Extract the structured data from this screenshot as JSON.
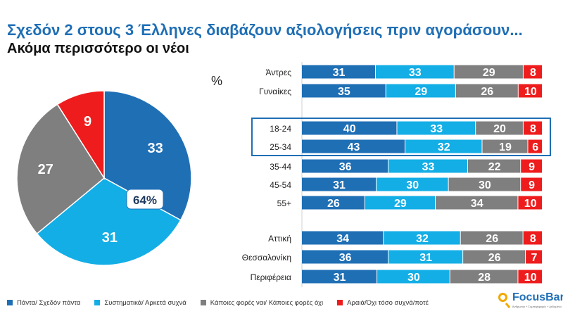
{
  "title": "Σχεδόν 2 στους 3 Έλληνες διαβάζουν αξιολογήσεις πριν αγοράσουν...",
  "subtitle": "Ακόμα περισσότερο οι νέοι",
  "unit_label": "%",
  "colors": {
    "pantα": "#1f6fb5",
    "systematika": "#13aee6",
    "kapoies": "#7f7f7f",
    "araia": "#ee1c1c"
  },
  "legend": [
    {
      "label": "Πάντα/ Σχεδόν πάντα",
      "color": "#1f6fb5"
    },
    {
      "label": "Συστηματικά/ Αρκετά συχνά",
      "color": "#13aee6"
    },
    {
      "label": "Κάποιες φορές ναι/ Κάποιες φορές όχι",
      "color": "#7f7f7f"
    },
    {
      "label": "Αραιά/Όχι τόσο συχνά/ποτέ",
      "color": "#ee1c1c"
    }
  ],
  "logo": {
    "name": "FocusBari",
    "tagline": "Άνθρωποι + Συμπεριφορές + Δεδομένα"
  },
  "chart_data": [
    {
      "type": "pie",
      "slices": [
        {
          "label": "Πάντα/ Σχεδόν πάντα",
          "value": 33,
          "color": "#1f6fb5"
        },
        {
          "label": "Συστηματικά/ Αρκετά συχνά",
          "value": 31,
          "color": "#13aee6"
        },
        {
          "label": "Κάποιες φορές ναι/ Κάποιες φορές όχι",
          "value": 27,
          "color": "#7f7f7f"
        },
        {
          "label": "Αραιά/Όχι τόσο συχνά/ποτέ",
          "value": 9,
          "color": "#ee1c1c"
        }
      ],
      "callout": "64%"
    },
    {
      "type": "bar",
      "stacked": true,
      "orientation": "horizontal",
      "groups": [
        {
          "rows": [
            "Άντρες",
            "Γυναίκες"
          ]
        },
        {
          "rows": [
            "18-24",
            "25-34",
            "35-44",
            "45-54",
            "55+"
          ],
          "highlighted": [
            "18-24",
            "25-34"
          ]
        },
        {
          "rows": [
            "Αττική",
            "Θεσσαλονίκη",
            "Περιφέρεια"
          ]
        }
      ],
      "categories": [
        "Άντρες",
        "Γυναίκες",
        "18-24",
        "25-34",
        "35-44",
        "45-54",
        "55+",
        "Αττική",
        "Θεσσαλονίκη",
        "Περιφέρεια"
      ],
      "series": [
        {
          "name": "Πάντα/ Σχεδόν πάντα",
          "values": [
            31,
            35,
            40,
            43,
            36,
            31,
            26,
            34,
            36,
            31
          ]
        },
        {
          "name": "Συστηματικά/ Αρκετά συχνά",
          "values": [
            33,
            29,
            33,
            32,
            33,
            30,
            29,
            32,
            31,
            30
          ]
        },
        {
          "name": "Κάποιες φορές ναι/ Κάποιες φορές όχι",
          "values": [
            29,
            26,
            20,
            19,
            22,
            30,
            34,
            26,
            26,
            28
          ]
        },
        {
          "name": "Αραιά/Όχι τόσο συχνά/ποτέ",
          "values": [
            8,
            10,
            8,
            6,
            9,
            9,
            10,
            8,
            7,
            10
          ]
        }
      ]
    }
  ]
}
